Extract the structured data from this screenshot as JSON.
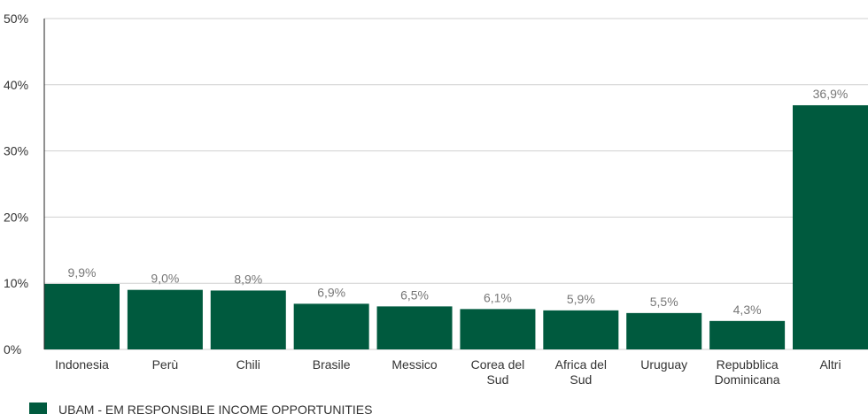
{
  "colors": {
    "bar": "#005a3e",
    "grid": "#d0d0d0",
    "axis": "#222222",
    "data_label": "#777777",
    "text": "#333333"
  },
  "chart_data": {
    "type": "bar",
    "categories": [
      [
        "Indonesia"
      ],
      [
        "Perù"
      ],
      [
        "Chili"
      ],
      [
        "Brasile"
      ],
      [
        "Messico"
      ],
      [
        "Corea del",
        "Sud"
      ],
      [
        "Africa del",
        "Sud"
      ],
      [
        "Uruguay"
      ],
      [
        "Repubblica",
        "Dominicana"
      ],
      [
        "Altri"
      ]
    ],
    "series": [
      {
        "name": "UBAM - EM RESPONSIBLE INCOME OPPORTUNITIES",
        "values": [
          9.9,
          9.0,
          8.9,
          6.9,
          6.5,
          6.1,
          5.9,
          5.5,
          4.3,
          36.9
        ]
      }
    ],
    "data_labels": [
      "9,9%",
      "9,0%",
      "8,9%",
      "6,9%",
      "6,5%",
      "6,1%",
      "5,9%",
      "5,5%",
      "4,3%",
      "36,9%"
    ],
    "yticks": [
      "0%",
      "10%",
      "20%",
      "30%",
      "40%",
      "50%"
    ],
    "ylim": [
      0,
      50
    ],
    "grid": true,
    "legend": "bottom-left"
  }
}
